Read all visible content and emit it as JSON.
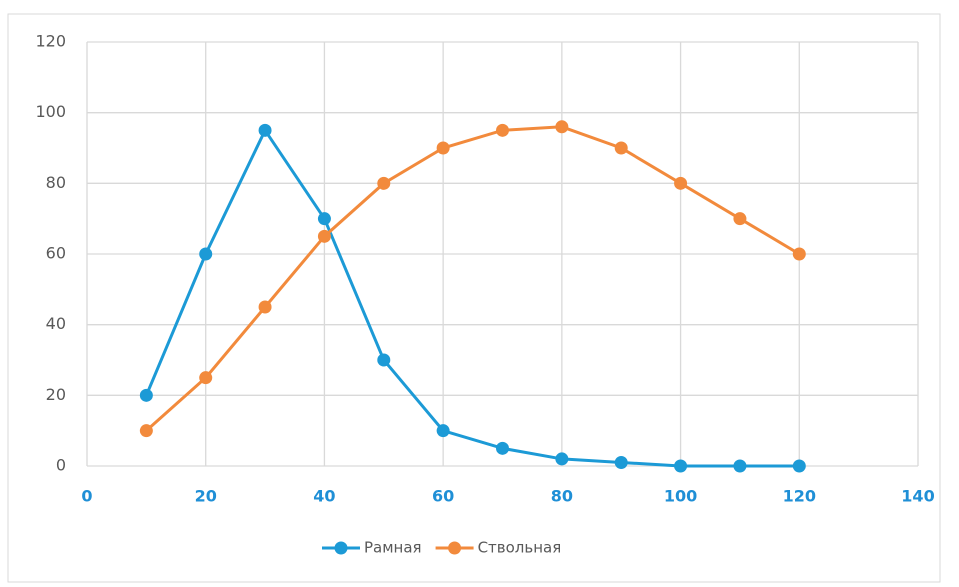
{
  "chart_data": {
    "type": "scatter_line",
    "x": [
      10,
      20,
      30,
      40,
      50,
      60,
      70,
      80,
      90,
      100,
      110,
      120
    ],
    "series": [
      {
        "name": "Рамная",
        "color": "#1c9ad6",
        "values": [
          20,
          60,
          95,
          70,
          30,
          10,
          5,
          2,
          1,
          0,
          0,
          0
        ]
      },
      {
        "name": "Ствольная",
        "color": "#f28a3c",
        "values": [
          10,
          25,
          45,
          65,
          80,
          90,
          95,
          96,
          90,
          80,
          70,
          60
        ]
      }
    ],
    "xlim": [
      0,
      140
    ],
    "xticks": [
      0,
      20,
      40,
      60,
      80,
      100,
      120,
      140
    ],
    "xtick_color": "#1f8fd6",
    "ylim": [
      0,
      120
    ],
    "yticks": [
      0,
      20,
      40,
      60,
      80,
      100,
      120
    ],
    "grid": true,
    "legend": "bottom"
  }
}
